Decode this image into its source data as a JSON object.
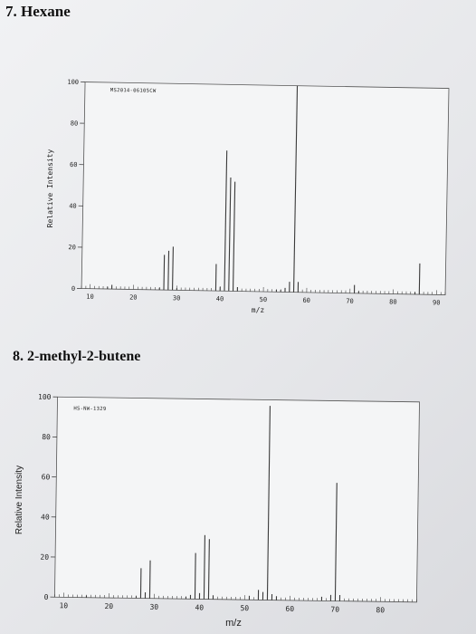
{
  "sections": [
    {
      "heading": "7. Hexane",
      "chart_data": {
        "type": "bar",
        "id_label": "MS2014-06105CW",
        "xlabel": "m/z",
        "ylabel": "Relative Intensity",
        "xlim": [
          8,
          92
        ],
        "ylim": [
          0,
          100
        ],
        "xticks": [
          10,
          20,
          30,
          40,
          50,
          60,
          70,
          80,
          90
        ],
        "yticks": [
          0,
          20,
          40,
          60,
          80,
          100
        ],
        "peaks": [
          {
            "x": 14,
            "y": 1
          },
          {
            "x": 15,
            "y": 2
          },
          {
            "x": 26,
            "y": 1
          },
          {
            "x": 27,
            "y": 17
          },
          {
            "x": 28,
            "y": 19
          },
          {
            "x": 29,
            "y": 21
          },
          {
            "x": 30,
            "y": 1
          },
          {
            "x": 39,
            "y": 13
          },
          {
            "x": 40,
            "y": 2
          },
          {
            "x": 41,
            "y": 68
          },
          {
            "x": 42,
            "y": 55
          },
          {
            "x": 43,
            "y": 53
          },
          {
            "x": 44,
            "y": 2
          },
          {
            "x": 53,
            "y": 1
          },
          {
            "x": 54,
            "y": 1
          },
          {
            "x": 55,
            "y": 2
          },
          {
            "x": 56,
            "y": 5
          },
          {
            "x": 57,
            "y": 100
          },
          {
            "x": 58,
            "y": 5
          },
          {
            "x": 71,
            "y": 4
          },
          {
            "x": 72,
            "y": 1
          },
          {
            "x": 85,
            "y": 1
          },
          {
            "x": 86,
            "y": 15
          }
        ]
      }
    },
    {
      "heading": "8. 2-methyl-2-butene",
      "chart_data": {
        "type": "bar",
        "id_label": "HS-NW-1329",
        "xlabel": "m/z",
        "ylabel": "Relative Intensity",
        "xlim": [
          8,
          88
        ],
        "ylim": [
          0,
          100
        ],
        "xticks": [
          10,
          20,
          30,
          40,
          50,
          60,
          70,
          80
        ],
        "yticks": [
          0,
          20,
          40,
          60,
          80,
          100
        ],
        "peaks": [
          {
            "x": 15,
            "y": 1
          },
          {
            "x": 26,
            "y": 1
          },
          {
            "x": 27,
            "y": 15
          },
          {
            "x": 28,
            "y": 3
          },
          {
            "x": 29,
            "y": 19
          },
          {
            "x": 37,
            "y": 1
          },
          {
            "x": 38,
            "y": 2
          },
          {
            "x": 39,
            "y": 23
          },
          {
            "x": 40,
            "y": 3
          },
          {
            "x": 41,
            "y": 32
          },
          {
            "x": 42,
            "y": 30
          },
          {
            "x": 43,
            "y": 2
          },
          {
            "x": 51,
            "y": 2
          },
          {
            "x": 53,
            "y": 5
          },
          {
            "x": 54,
            "y": 4
          },
          {
            "x": 55,
            "y": 97
          },
          {
            "x": 56,
            "y": 3
          },
          {
            "x": 57,
            "y": 2
          },
          {
            "x": 67,
            "y": 2
          },
          {
            "x": 69,
            "y": 3
          },
          {
            "x": 70,
            "y": 59
          },
          {
            "x": 71,
            "y": 3
          }
        ]
      }
    }
  ]
}
